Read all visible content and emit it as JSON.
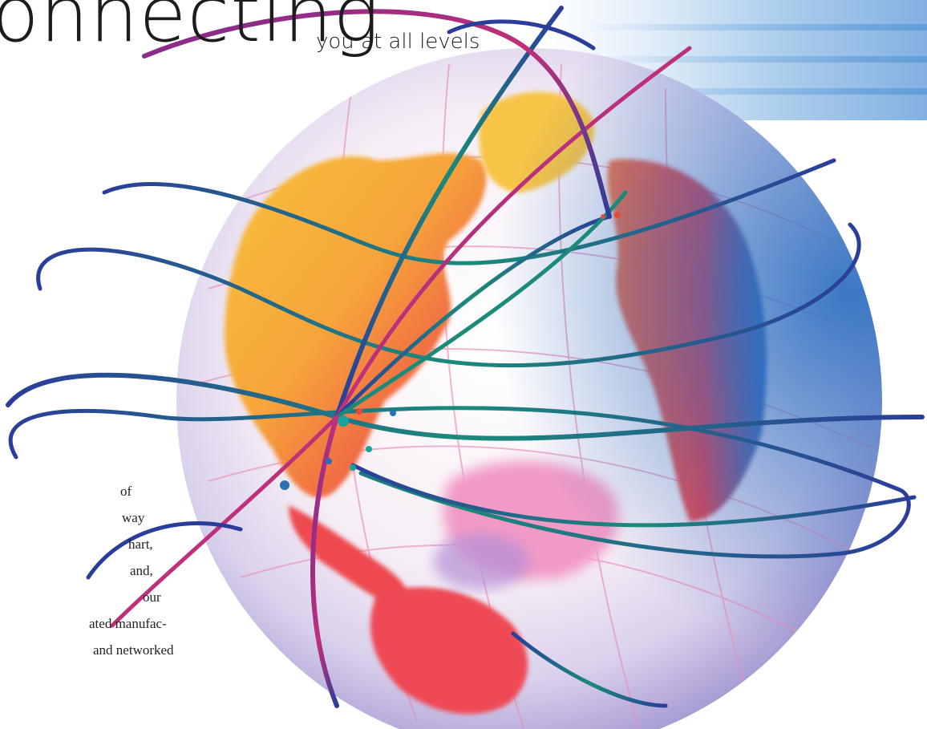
{
  "header": {
    "title": "onnecting",
    "subtitle": "you at all levels"
  },
  "body_text": {
    "lines": [
      "of",
      "way",
      "hart,",
      "and,",
      "our",
      "ated manufac-",
      "and networked"
    ]
  },
  "colors": {
    "globe_orange": "#f7b23b",
    "globe_red": "#ee4a4f",
    "globe_pink": "#f29ac6",
    "globe_blue": "#2a6fc0",
    "orbit_blue": "#2b3d9a",
    "orbit_green": "#1a8a7a",
    "orbit_purple": "#8a2a8a",
    "banner_blue": "#5a96d7"
  },
  "illustration": {
    "icon": "globe-icon"
  }
}
